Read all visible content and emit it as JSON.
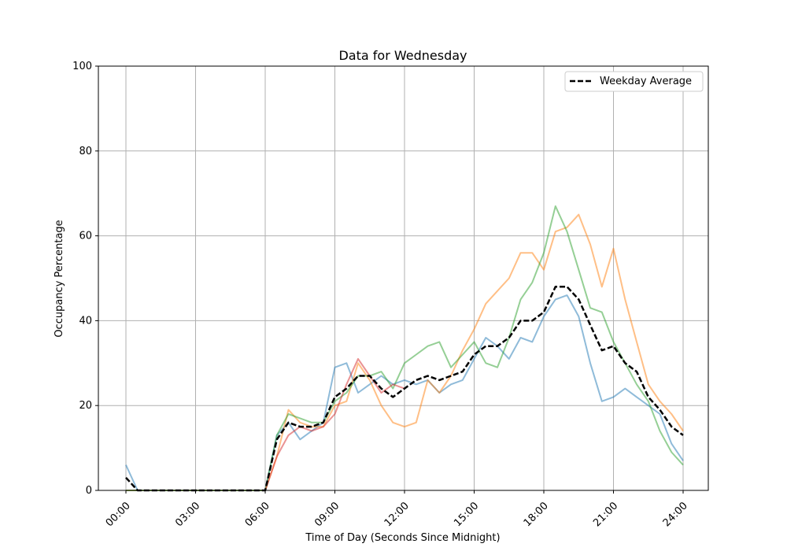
{
  "chart_data": {
    "type": "line",
    "title": "Data for Wednesday",
    "xlabel": "Time of Day (Seconds Since Midnight)",
    "ylabel": "Occupancy Percentage",
    "ylim": [
      0,
      100
    ],
    "yticks": [
      "0",
      "20",
      "40",
      "60",
      "80",
      "100"
    ],
    "xticks": [
      "00:00",
      "03:00",
      "06:00",
      "09:00",
      "12:00",
      "15:00",
      "18:00",
      "21:00",
      "24:00"
    ],
    "grid": true,
    "legend": {
      "placement": "top-right",
      "entries": [
        "Weekday Average"
      ]
    },
    "x": [
      "00:00",
      "00:30",
      "01:00",
      "01:30",
      "02:00",
      "02:30",
      "03:00",
      "03:30",
      "04:00",
      "04:30",
      "05:00",
      "05:30",
      "06:00",
      "06:30",
      "07:00",
      "07:30",
      "08:00",
      "08:30",
      "09:00",
      "09:30",
      "10:00",
      "10:30",
      "11:00",
      "11:30",
      "12:00",
      "12:30",
      "13:00",
      "13:30",
      "14:00",
      "14:30",
      "15:00",
      "15:30",
      "16:00",
      "16:30",
      "17:00",
      "17:30",
      "18:00",
      "18:30",
      "19:00",
      "19:30",
      "20:00",
      "20:30",
      "21:00",
      "21:30",
      "22:00",
      "22:30",
      "23:00",
      "23:30",
      "24:00"
    ],
    "series": [
      {
        "color": "#1f77b4",
        "style": "solid",
        "values": [
          6,
          0,
          0,
          0,
          0,
          0,
          0,
          0,
          0,
          0,
          0,
          0,
          0,
          13,
          16,
          12,
          14,
          16,
          29,
          30,
          23,
          25,
          27,
          25,
          26,
          25,
          26,
          23,
          25,
          26,
          31,
          36,
          34,
          31,
          36,
          35,
          41,
          45,
          46,
          41,
          30,
          21,
          22,
          24,
          22,
          20,
          18,
          11,
          7
        ]
      },
      {
        "color": "#ff7f0e",
        "style": "solid",
        "values": [
          0,
          0,
          0,
          0,
          0,
          0,
          0,
          0,
          0,
          0,
          0,
          0,
          0,
          8,
          19,
          16,
          15,
          15,
          20,
          21,
          30,
          26,
          20,
          16,
          15,
          16,
          26,
          23,
          27,
          33,
          38,
          44,
          47,
          50,
          56,
          56,
          52,
          61,
          62,
          65,
          58,
          48,
          57,
          45,
          35,
          25,
          21,
          18,
          14
        ]
      },
      {
        "color": "#2ca02c",
        "style": "solid",
        "values": [
          0,
          0,
          0,
          0,
          0,
          0,
          0,
          0,
          0,
          0,
          0,
          0,
          0,
          13,
          18,
          17,
          16,
          16,
          21,
          23,
          27,
          27,
          28,
          24,
          30,
          32,
          34,
          35,
          29,
          32,
          35,
          30,
          29,
          36,
          45,
          49,
          56,
          67,
          61,
          52,
          43,
          42,
          35,
          30,
          25,
          21,
          14,
          9,
          6
        ]
      },
      {
        "color": "#d62728",
        "style": "solid",
        "values": [
          null,
          null,
          null,
          null,
          null,
          null,
          null,
          null,
          null,
          null,
          null,
          null,
          0,
          8,
          13,
          15,
          14,
          15,
          18,
          25,
          31,
          27,
          23,
          25,
          24,
          null,
          null,
          null,
          null,
          null,
          null,
          null,
          null,
          null,
          null,
          null,
          null,
          null,
          null,
          null,
          null,
          null,
          null,
          null,
          null,
          null,
          null,
          null,
          null
        ]
      },
      {
        "name": "Weekday Average",
        "color": "#000000",
        "style": "dashed",
        "values": [
          3,
          0,
          0,
          0,
          0,
          0,
          0,
          0,
          0,
          0,
          0,
          0,
          0,
          12,
          16,
          15,
          15,
          16,
          22,
          24,
          27,
          27,
          24,
          22,
          24,
          26,
          27,
          26,
          27,
          28,
          32,
          34,
          34,
          36,
          40,
          40,
          42,
          48,
          48,
          45,
          39,
          33,
          34,
          30,
          28,
          22,
          19,
          15,
          13
        ]
      }
    ]
  }
}
